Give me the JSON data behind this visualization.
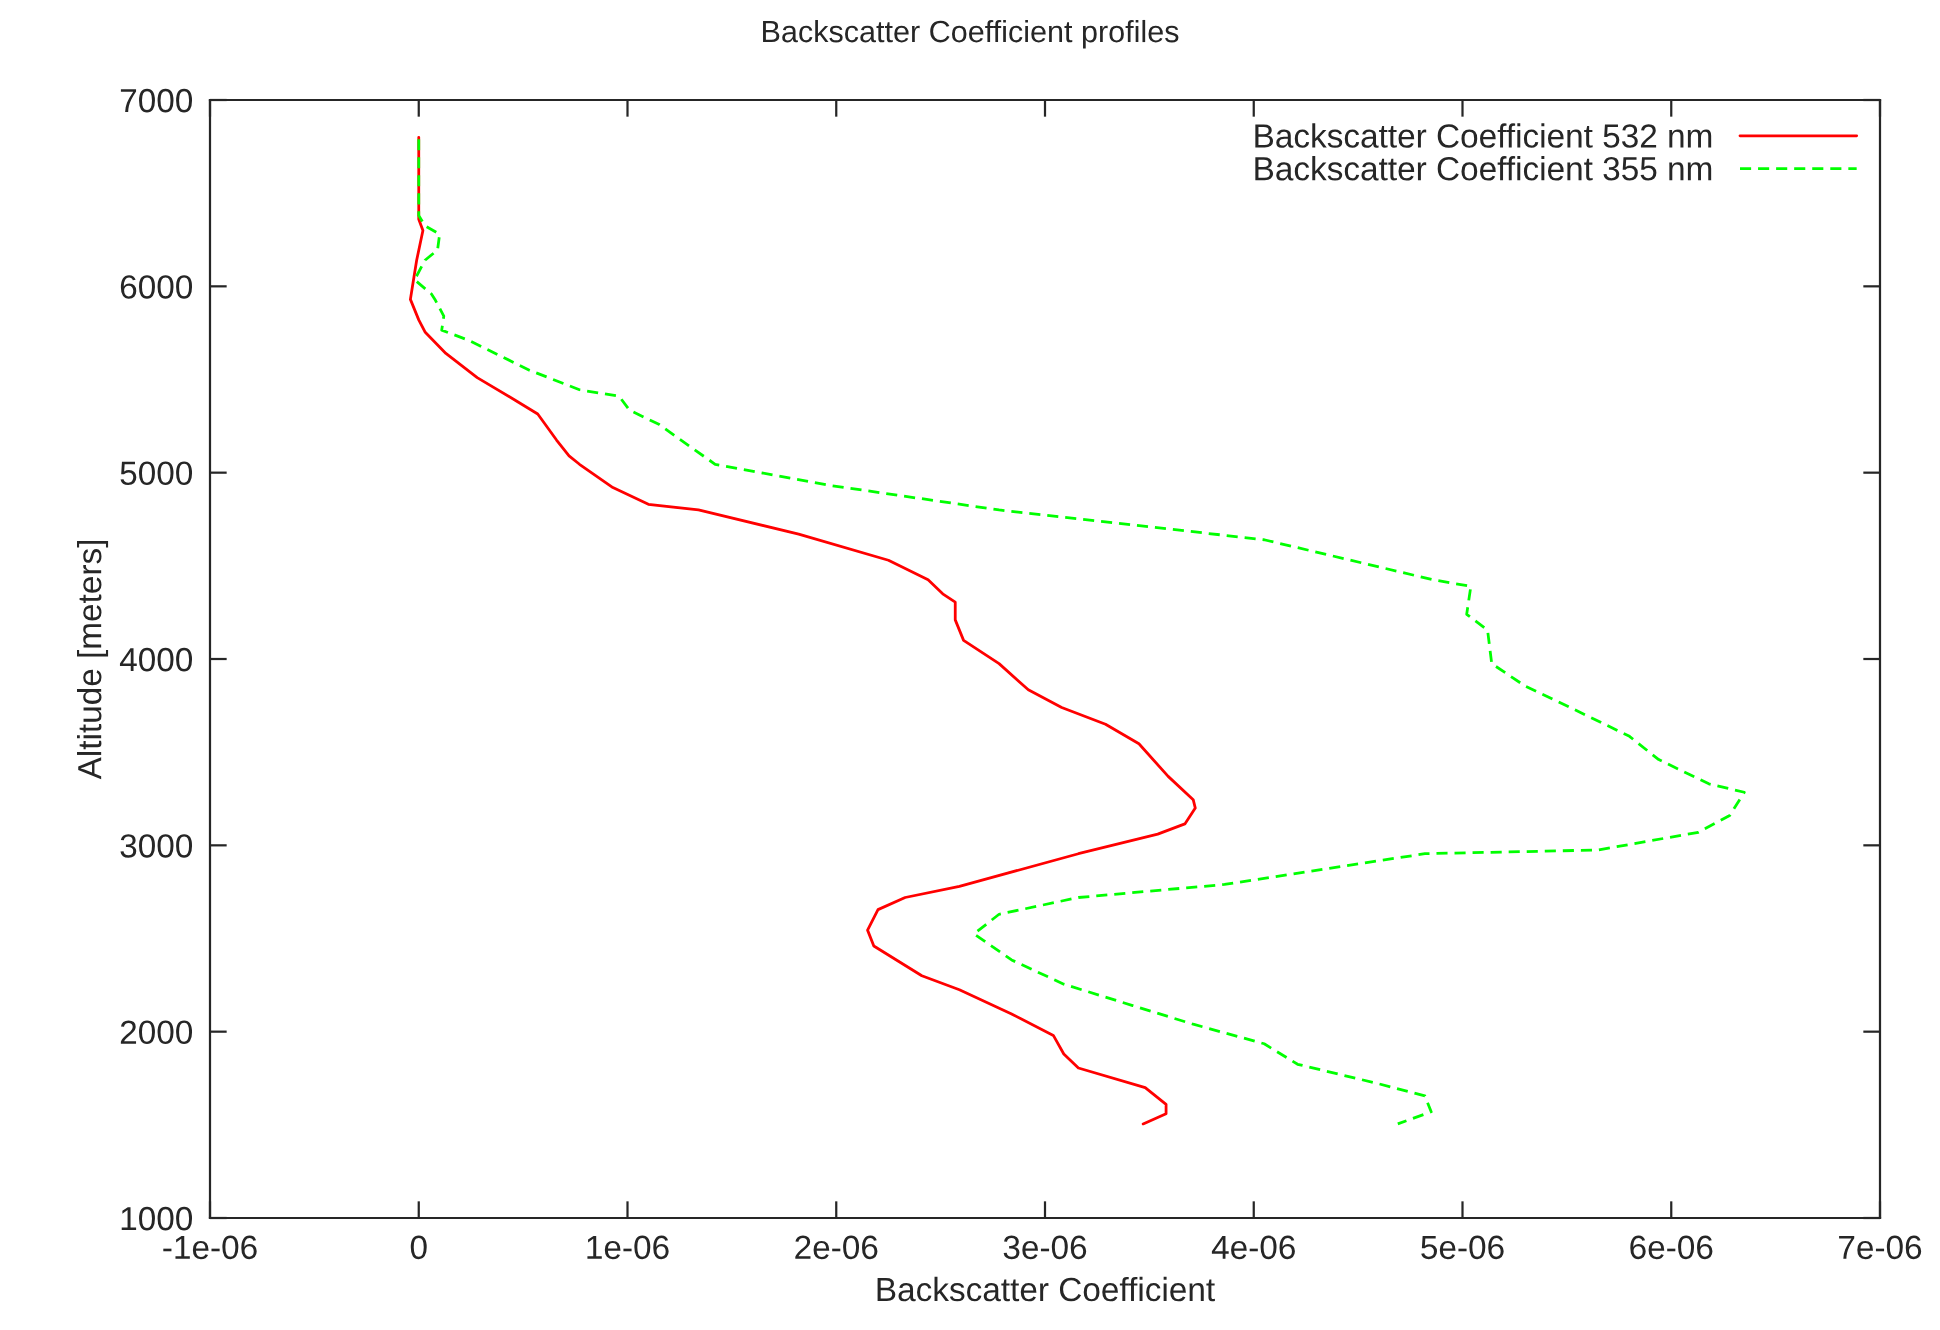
{
  "chart_data": {
    "type": "line",
    "title": "Backscatter Coefficient profiles",
    "xlabel": "Backscatter Coefficient",
    "ylabel": "Altitude [meters]",
    "xlim": [
      -1e-06,
      7e-06
    ],
    "ylim": [
      1000,
      7000
    ],
    "xticks": [
      {
        "value": -1e-06,
        "label": "-1e-06"
      },
      0,
      {
        "value": 1e-06,
        "label": "1e-06"
      },
      {
        "value": 2e-06,
        "label": "2e-06"
      },
      {
        "value": 3e-06,
        "label": "3e-06"
      },
      {
        "value": 4e-06,
        "label": "4e-06"
      },
      {
        "value": 5e-06,
        "label": "5e-06"
      },
      {
        "value": 6e-06,
        "label": "6e-06"
      },
      {
        "value": 7e-06,
        "label": "7e-06"
      }
    ],
    "yticks": [
      1000,
      2000,
      3000,
      4000,
      5000,
      6000,
      7000
    ],
    "grid": false,
    "legend": "top right",
    "series": [
      {
        "name": "Backscatter Coefficient 532 nm",
        "color": "#ff0000",
        "line_style": "solid",
        "x": [
          0,
          0,
          2e-08,
          -1e-08,
          -3e-08,
          -4e-08,
          0,
          3e-08,
          1.3e-07,
          2.8e-07,
          4.6e-07,
          5.7e-07,
          6.6e-07,
          7.2e-07,
          7.7e-07,
          9.3e-07,
          1.1e-06,
          1.34e-06,
          1.82e-06,
          2.25e-06,
          2.44e-06,
          2.51e-06,
          2.57e-06,
          2.57e-06,
          2.61e-06,
          2.78e-06,
          2.92e-06,
          3.08e-06,
          3.29e-06,
          3.45e-06,
          3.59e-06,
          3.71e-06,
          3.72e-06,
          3.67e-06,
          3.54e-06,
          3.16e-06,
          2.59e-06,
          2.33e-06,
          2.2e-06,
          2.15e-06,
          2.18e-06,
          2.41e-06,
          2.59e-06,
          2.84e-06,
          3.04e-06,
          3.09e-06,
          3.16e-06,
          3.48e-06,
          3.58e-06,
          3.58e-06,
          3.47e-06
        ],
        "values": [
          6800,
          6360,
          6300,
          6140,
          6000,
          5930,
          5820,
          5755,
          5640,
          5510,
          5390,
          5315,
          5175,
          5090,
          5045,
          4920,
          4830,
          4800,
          4670,
          4530,
          4425,
          4350,
          4305,
          4210,
          4100,
          3975,
          3835,
          3740,
          3650,
          3545,
          3370,
          3245,
          3200,
          3115,
          3060,
          2955,
          2780,
          2720,
          2655,
          2545,
          2460,
          2300,
          2225,
          2095,
          1980,
          1880,
          1805,
          1700,
          1610,
          1560,
          1505
        ]
      },
      {
        "name": "Backscatter Coefficient 355 nm",
        "color": "#00ff00",
        "line_style": "dashed",
        "x": [
          0,
          0,
          3e-08,
          1e-07,
          9e-08,
          3e-08,
          -2e-08,
          6e-08,
          8e-08,
          1.2e-07,
          1.1e-07,
          2.4e-07,
          5.3e-07,
          7.7e-07,
          9.6e-07,
          1.01e-06,
          1.15e-06,
          1.23e-06,
          1.42e-06,
          1.98e-06,
          2.78e-06,
          4.05e-06,
          4.86e-06,
          5.04e-06,
          5.02e-06,
          5.12e-06,
          5.14e-06,
          5.3e-06,
          5.46e-06,
          5.8e-06,
          5.94e-06,
          6.18e-06,
          6.35e-06,
          6.28e-06,
          6.13e-06,
          5.65e-06,
          4.82e-06,
          3.86e-06,
          3.16e-06,
          2.78e-06,
          2.66e-06,
          2.84e-06,
          3.09e-06,
          3.42e-06,
          3.71e-06,
          4.05e-06,
          4.21e-06,
          4.6e-06,
          4.82e-06,
          4.85e-06,
          4.69e-06
        ],
        "values": [
          6790,
          6380,
          6325,
          6280,
          6195,
          6140,
          6035,
          5960,
          5925,
          5840,
          5765,
          5710,
          5550,
          5445,
          5410,
          5335,
          5260,
          5195,
          5045,
          4930,
          4800,
          4640,
          4425,
          4390,
          4240,
          4155,
          3975,
          3855,
          3770,
          3585,
          3460,
          3330,
          3285,
          3160,
          3070,
          2975,
          2955,
          2790,
          2720,
          2630,
          2525,
          2385,
          2255,
          2140,
          2040,
          1935,
          1825,
          1720,
          1655,
          1570,
          1505
        ]
      }
    ]
  }
}
